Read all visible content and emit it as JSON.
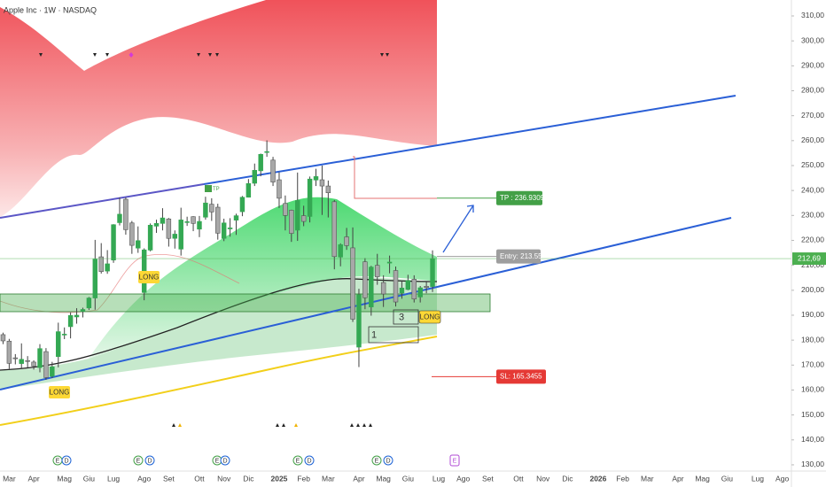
{
  "chart_data": {
    "type": "candlestick",
    "title": "Apple Inc · 1W · NASDAQ",
    "categories": [
      null,
      "Mar",
      null,
      null,
      null,
      "Apr",
      null,
      null,
      null,
      null,
      "Mag",
      null,
      null,
      null,
      "Giu",
      null,
      null,
      null,
      "Lug",
      null,
      null,
      null,
      null,
      "Ago",
      null,
      null,
      null,
      "Set",
      null,
      null,
      null,
      null,
      "Ott",
      null,
      null,
      null,
      "Nov",
      null,
      null,
      null,
      "Dic",
      null,
      null,
      null,
      null,
      "2025",
      null,
      null,
      null,
      "Feb",
      null,
      null,
      null,
      "Mar",
      null,
      null,
      null,
      null,
      "Apr",
      null,
      null,
      null,
      "Mag",
      null,
      null,
      null,
      "Giu",
      null,
      null,
      null,
      null,
      "Lug",
      null,
      null,
      null,
      "Ago",
      null,
      null,
      null,
      "Set",
      null,
      null,
      null,
      null,
      "Ott",
      null,
      null,
      null,
      "Nov",
      null,
      null,
      null,
      "Dic",
      null,
      null,
      null,
      null,
      "2026",
      null,
      null,
      null,
      "Feb",
      null,
      null,
      null,
      "Mar",
      null,
      null,
      null,
      null,
      "Apr",
      null,
      null,
      null,
      "Mag",
      null,
      null,
      null,
      "Giu",
      null,
      null,
      null,
      null,
      "Lug",
      null,
      null,
      null,
      "Ago",
      null
    ],
    "open": [
      182.2,
      179.6,
      172.9,
      170.6,
      171.8,
      171.2,
      169.0,
      175.4,
      165.5,
      173.4,
      182.4,
      185.4,
      189.3,
      191.5,
      192.9,
      196.9,
      213.4,
      207.7,
      212.1,
      227.1,
      236.5,
      227.0,
      216.9,
      199.1,
      216.1,
      225.7,
      226.8,
      228.6,
      220.8,
      216.5,
      227.3,
      229.5,
      224.5,
      229.3,
      234.5,
      233.3,
      220.8,
      224.6,
      228.1,
      231.5,
      237.3,
      242.9,
      247.9,
      255.5,
      252.2,
      244.3,
      234.8,
      232.1,
      224.1,
      229.9,
      229.6,
      244.2,
      244.3,
      241.8,
      235.5,
      213.3,
      221.4,
      217.0,
      177.2,
      211.4,
      193.3,
      210.0,
      203.1,
      210.9,
      207.9,
      198.9,
      200.3,
      204.4,
      197.3,
      201.6,
      201.5,
      null,
      null,
      null,
      null,
      null,
      null,
      null,
      null,
      null,
      null,
      null,
      null,
      null,
      null,
      null,
      null,
      null,
      null,
      null,
      null,
      null,
      null,
      null,
      null,
      null,
      null,
      null,
      null,
      null,
      null,
      null,
      null,
      null,
      null,
      null,
      null,
      null,
      null,
      null,
      null,
      null,
      null,
      null,
      null,
      null,
      null,
      null,
      null,
      null,
      null,
      null,
      null,
      null,
      null,
      null,
      null,
      null,
      null
    ],
    "high": [
      183.0,
      180.5,
      174.4,
      178.7,
      173.6,
      171.9,
      178.4,
      176.8,
      171.3,
      187.0,
      185.1,
      191.1,
      192.8,
      193.0,
      197.3,
      220.2,
      218.9,
      216.1,
      226.5,
      237.2,
      237.2,
      227.8,
      225.6,
      216.8,
      226.8,
      228.3,
      232.9,
      229.0,
      224.0,
      233.1,
      229.5,
      229.7,
      229.8,
      237.5,
      236.9,
      234.7,
      228.7,
      228.9,
      230.7,
      237.8,
      244.6,
      250.8,
      254.8,
      260.1,
      253.5,
      247.3,
      238.0,
      232.3,
      247.2,
      233.9,
      245.6,
      248.7,
      250.0,
      244.0,
      236.2,
      218.8,
      225.0,
      225.2,
      200.6,
      212.9,
      209.8,
      214.6,
      206.0,
      213.9,
      209.5,
      203.8,
      206.2,
      206.0,
      201.7,
      203.4,
      216.0,
      null,
      null,
      null,
      null,
      null,
      null,
      null,
      null,
      null,
      null,
      null,
      null,
      null,
      null,
      null,
      null,
      null,
      null,
      null,
      null,
      null,
      null,
      null,
      null,
      null,
      null,
      null,
      null,
      null,
      null,
      null,
      null,
      null,
      null,
      null,
      null,
      null,
      null,
      null,
      null,
      null,
      null,
      null,
      null,
      null,
      null,
      null,
      null,
      null,
      null,
      null,
      null,
      null,
      null,
      null,
      null,
      null,
      null
    ],
    "low": [
      178.4,
      168.5,
      170.3,
      168.6,
      169.0,
      168.2,
      167.1,
      164.1,
      164.8,
      169.1,
      180.4,
      180.7,
      186.6,
      189.1,
      192.1,
      192.2,
      206.7,
      206.6,
      211.0,
      226.0,
      222.3,
      214.6,
      215.0,
      196.0,
      215.6,
      223.0,
      224.0,
      217.5,
      216.7,
      213.9,
      225.8,
      223.7,
      221.3,
      228.3,
      227.8,
      220.3,
      219.7,
      221.5,
      222.2,
      229.7,
      237.2,
      241.8,
      245.7,
      253.5,
      241.8,
      233.0,
      224.0,
      219.4,
      219.8,
      225.7,
      227.2,
      241.8,
      230.2,
      229.2,
      208.4,
      209.6,
      216.2,
      187.3,
      169.2,
      192.4,
      189.8,
      202.2,
      193.3,
      206.8,
      193.5,
      196.6,
      200.0,
      195.1,
      195.1,
      198.8,
      199.3,
      null,
      null,
      null,
      null,
      null,
      null,
      null,
      null,
      null,
      null,
      null,
      null,
      null,
      null,
      null,
      null,
      null,
      null,
      null,
      null,
      null,
      null,
      null,
      null,
      null,
      null,
      null,
      null,
      null,
      null,
      null,
      null,
      null,
      null,
      null,
      null,
      null,
      null,
      null,
      null,
      null,
      null,
      null,
      null,
      null,
      null,
      null,
      null,
      null,
      null,
      null,
      null,
      null,
      null,
      null,
      null,
      null,
      null
    ],
    "close": [
      179.7,
      170.7,
      172.6,
      172.3,
      171.5,
      169.6,
      176.6,
      165.0,
      169.3,
      183.4,
      182.4,
      189.9,
      190.0,
      192.3,
      196.9,
      212.5,
      207.5,
      210.6,
      226.3,
      230.5,
      224.3,
      218.0,
      219.9,
      216.2,
      226.1,
      226.8,
      229.0,
      220.8,
      222.5,
      228.2,
      227.5,
      226.8,
      227.6,
      235.0,
      231.4,
      222.9,
      227.0,
      225.0,
      229.9,
      237.3,
      242.8,
      248.1,
      254.5,
      255.6,
      243.4,
      236.9,
      230.0,
      222.8,
      236.0,
      227.6,
      244.6,
      245.6,
      241.8,
      239.1,
      213.5,
      218.3,
      217.9,
      188.4,
      198.2,
      197.0,
      209.3,
      205.4,
      198.5,
      211.3,
      195.3,
      200.9,
      203.9,
      196.5,
      201.0,
      201.1,
      212.69,
      null,
      null,
      null,
      null,
      null,
      null,
      null,
      null,
      null,
      null,
      null,
      null,
      null,
      null,
      null,
      null,
      null,
      null,
      null,
      null,
      null,
      null,
      null,
      null,
      null,
      null,
      null,
      null,
      null,
      null,
      null,
      null,
      null,
      null,
      null,
      null,
      null,
      null,
      null,
      null,
      null,
      null,
      null,
      null,
      null,
      null,
      null,
      null,
      null,
      null,
      null,
      null,
      null,
      null,
      null,
      null,
      null,
      null
    ],
    "up_color": "#34a853",
    "down_color": "#a8a8a8",
    "wick_color": "#424242",
    "ylim": [
      127.5,
      316.39
    ],
    "yticks": [
      {
        "value": 130,
        "label": "130,00"
      },
      {
        "value": 140,
        "label": "140,00"
      },
      {
        "value": 150,
        "label": "150,00"
      },
      {
        "value": 160,
        "label": "160,00"
      },
      {
        "value": 170,
        "label": "170,00"
      },
      {
        "value": 180,
        "label": "180,00"
      },
      {
        "value": 190,
        "label": "190,00"
      },
      {
        "value": 200,
        "label": "200,00"
      },
      {
        "value": 210,
        "label": "210,00"
      },
      {
        "value": 220,
        "label": "220,00"
      },
      {
        "value": 230,
        "label": "230,00"
      },
      {
        "value": 240,
        "label": "240,00"
      },
      {
        "value": 250,
        "label": "250,00"
      },
      {
        "value": 260,
        "label": "260,00"
      },
      {
        "value": 270,
        "label": "270,00"
      },
      {
        "value": 280,
        "label": "280,00"
      },
      {
        "value": 290,
        "label": "290,00"
      },
      {
        "value": 300,
        "label": "300,00"
      },
      {
        "value": 310,
        "label": "310,00"
      }
    ],
    "last_price": {
      "value": 212.69,
      "label": "212,69",
      "color": "#4caf50"
    },
    "annotations": [
      {
        "text": "TP : 236.9309",
        "value": 236.9309,
        "color": "#43a047"
      },
      {
        "text": "Entry: 213.55",
        "value": 213.55,
        "color": "#9e9e9e"
      },
      {
        "text": "SL: 165.3455",
        "value": 165.3455,
        "color": "#e53935"
      }
    ],
    "signals": [
      "LONG",
      "LONG",
      "LONG"
    ],
    "zone_labels": [
      "3",
      "1"
    ],
    "tp_tag": "TP",
    "event_badges": [
      "E",
      "D",
      "E",
      "D",
      "E",
      "D",
      "E",
      "D",
      "E",
      "D",
      "E"
    ]
  }
}
